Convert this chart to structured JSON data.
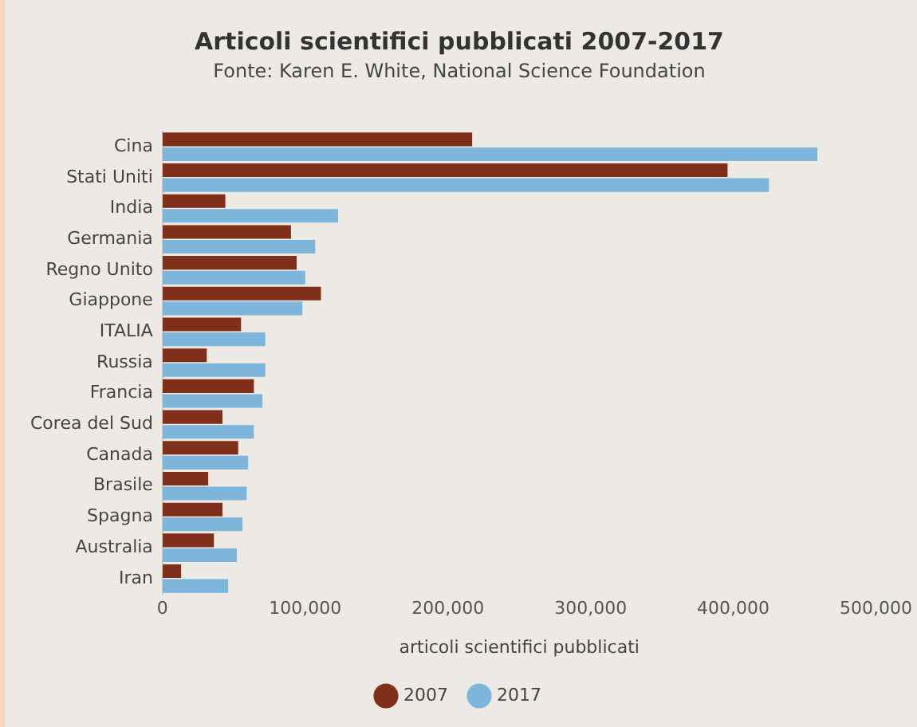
{
  "chart_data": {
    "type": "bar",
    "orientation": "horizontal",
    "title": "Articoli scientifici pubblicati 2007-2017",
    "subtitle": "Fonte: Karen E. White, National Science Foundation",
    "xlabel": "articoli scientifici pubblicati",
    "categories": [
      "Cina",
      "Stati Uniti",
      "India",
      "Germania",
      "Regno Unito",
      "Giappone",
      "ITALIA",
      "Russia",
      "Francia",
      "Corea del Sud",
      "Canada",
      "Brasile",
      "Spagna",
      "Australia",
      "Iran"
    ],
    "series": [
      {
        "name": "2007",
        "color": "#7f2f1a",
        "values": [
          217000,
          396000,
          44000,
          90000,
          94000,
          111000,
          55000,
          31000,
          64000,
          42000,
          53000,
          32000,
          42000,
          36000,
          13000
        ]
      },
      {
        "name": "2017",
        "color": "#7db6da",
        "values": [
          459000,
          425000,
          123000,
          107000,
          100000,
          98000,
          72000,
          72000,
          70000,
          64000,
          60000,
          59000,
          56000,
          52000,
          46000
        ]
      }
    ],
    "xlim": [
      0,
      500000
    ],
    "xticks": [
      0,
      {
        "value": 100000,
        "label": "100,000"
      },
      {
        "value": 200000,
        "label": "200,000"
      },
      {
        "value": 300000,
        "label": "300,000"
      },
      {
        "value": 400000,
        "label": "400,000"
      },
      {
        "value": 500000,
        "label": "500,000"
      }
    ],
    "grid": false,
    "legend": "bottom"
  }
}
